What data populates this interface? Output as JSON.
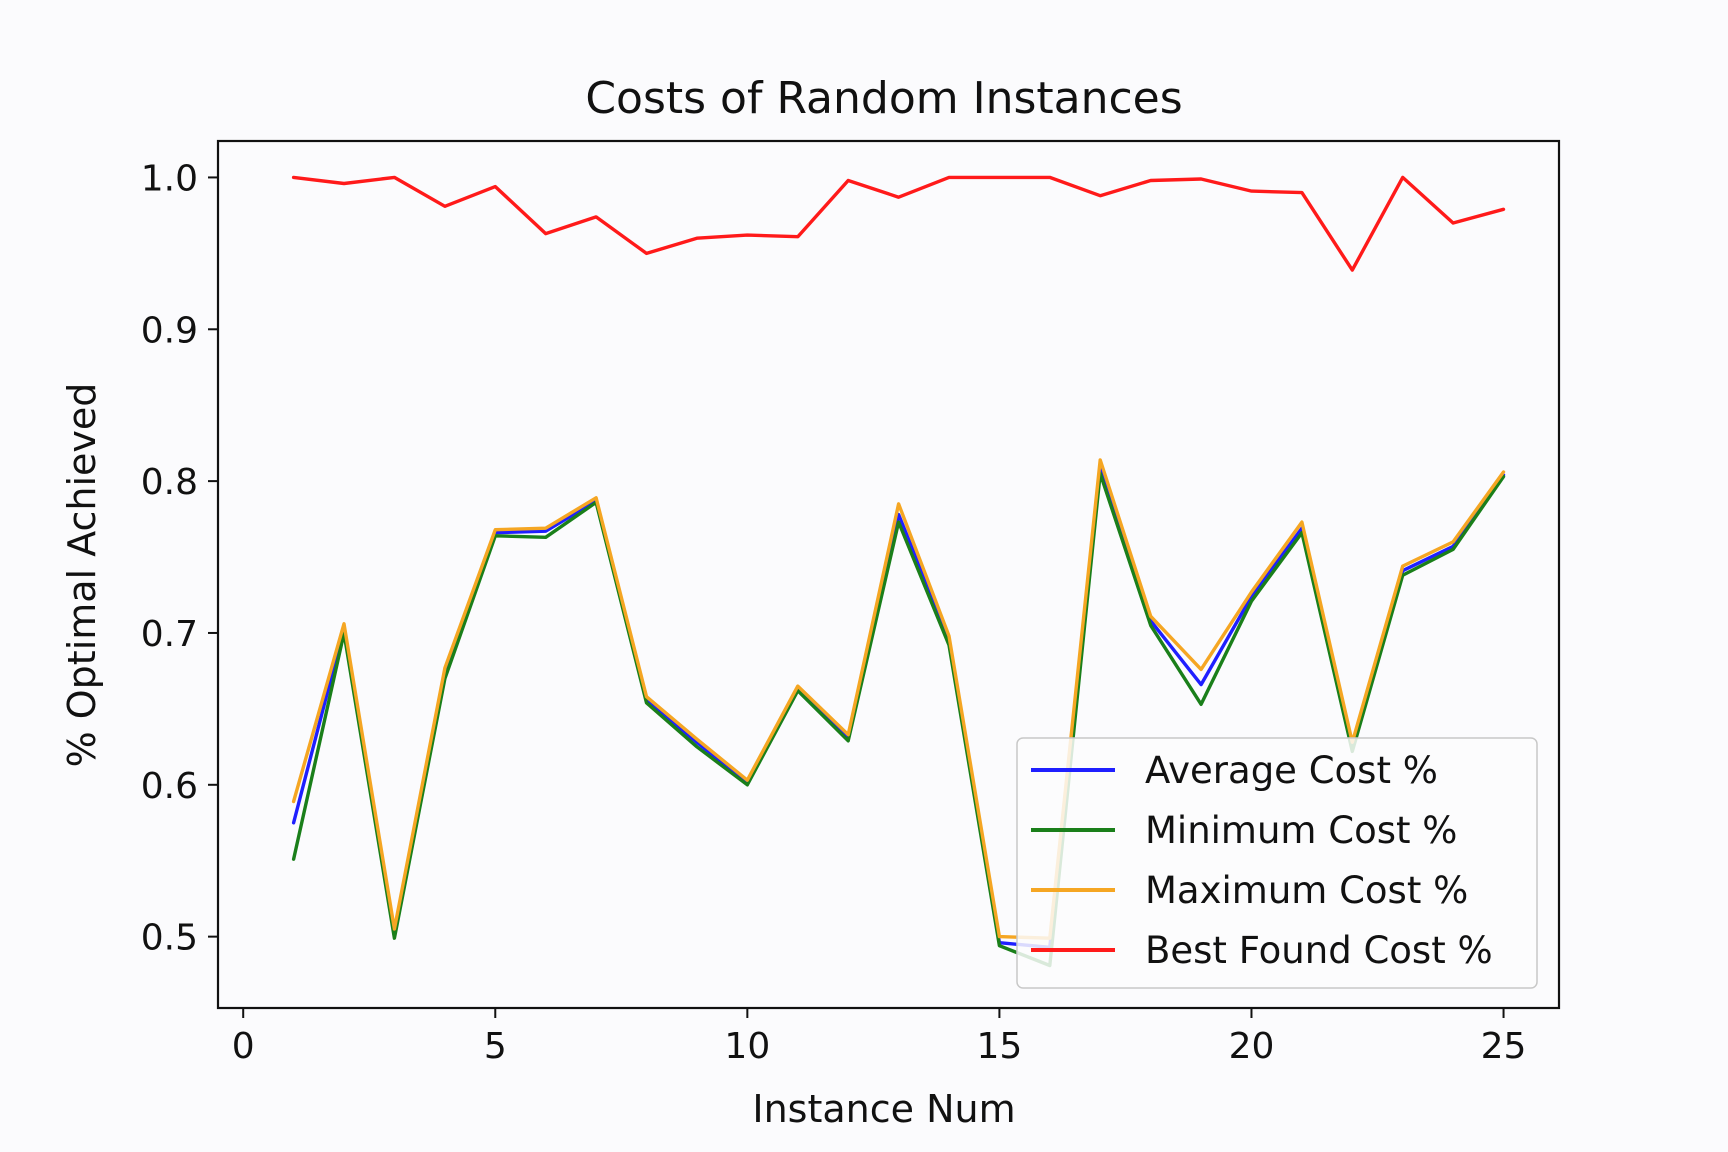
{
  "chart_data": {
    "type": "line",
    "title": "Costs of Random Instances",
    "xlabel": "Instance Num",
    "ylabel": "% Optimal Achieved",
    "xlim": [
      -0.5,
      26.1
    ],
    "ylim": [
      0.453,
      1.024
    ],
    "xticks": [
      0,
      5,
      10,
      15,
      20,
      25
    ],
    "xtick_labels": [
      "0",
      "5",
      "10",
      "15",
      "20",
      "25"
    ],
    "yticks": [
      0.5,
      0.6,
      0.7,
      0.8,
      0.9,
      1.0
    ],
    "ytick_labels": [
      "0.5",
      "0.6",
      "0.7",
      "0.8",
      "0.9",
      "1.0"
    ],
    "grid": false,
    "legend_position": "lower-right",
    "x": [
      1,
      2,
      3,
      4,
      5,
      6,
      7,
      8,
      9,
      10,
      11,
      12,
      13,
      14,
      15,
      16,
      17,
      18,
      19,
      20,
      21,
      22,
      23,
      24,
      25
    ],
    "series": [
      {
        "name": "Average Cost %",
        "color": "#1f1fff",
        "values": [
          0.575,
          0.703,
          0.502,
          0.673,
          0.766,
          0.767,
          0.787,
          0.656,
          0.628,
          0.601,
          0.664,
          0.631,
          0.778,
          0.695,
          0.496,
          0.493,
          0.809,
          0.708,
          0.666,
          0.724,
          0.769,
          0.625,
          0.741,
          0.757,
          0.804
        ]
      },
      {
        "name": "Minimum Cost %",
        "color": "#1a7f1a",
        "values": [
          0.551,
          0.7,
          0.499,
          0.67,
          0.764,
          0.763,
          0.786,
          0.654,
          0.625,
          0.6,
          0.662,
          0.629,
          0.773,
          0.692,
          0.494,
          0.481,
          0.805,
          0.705,
          0.653,
          0.721,
          0.766,
          0.622,
          0.738,
          0.755,
          0.803
        ]
      },
      {
        "name": "Maximum Cost %",
        "color": "#f5a623",
        "values": [
          0.589,
          0.706,
          0.505,
          0.677,
          0.768,
          0.769,
          0.789,
          0.658,
          0.63,
          0.603,
          0.665,
          0.633,
          0.785,
          0.698,
          0.5,
          0.499,
          0.814,
          0.711,
          0.676,
          0.727,
          0.773,
          0.628,
          0.744,
          0.76,
          0.806
        ]
      },
      {
        "name": "Best Found Cost %",
        "color": "#ff1a1a",
        "values": [
          1.0,
          0.996,
          1.0,
          0.981,
          0.994,
          0.963,
          0.974,
          0.95,
          0.96,
          0.962,
          0.961,
          0.998,
          0.987,
          1.0,
          1.0,
          1.0,
          0.988,
          0.998,
          0.999,
          0.991,
          0.99,
          0.939,
          1.0,
          0.97,
          0.979
        ]
      }
    ]
  }
}
